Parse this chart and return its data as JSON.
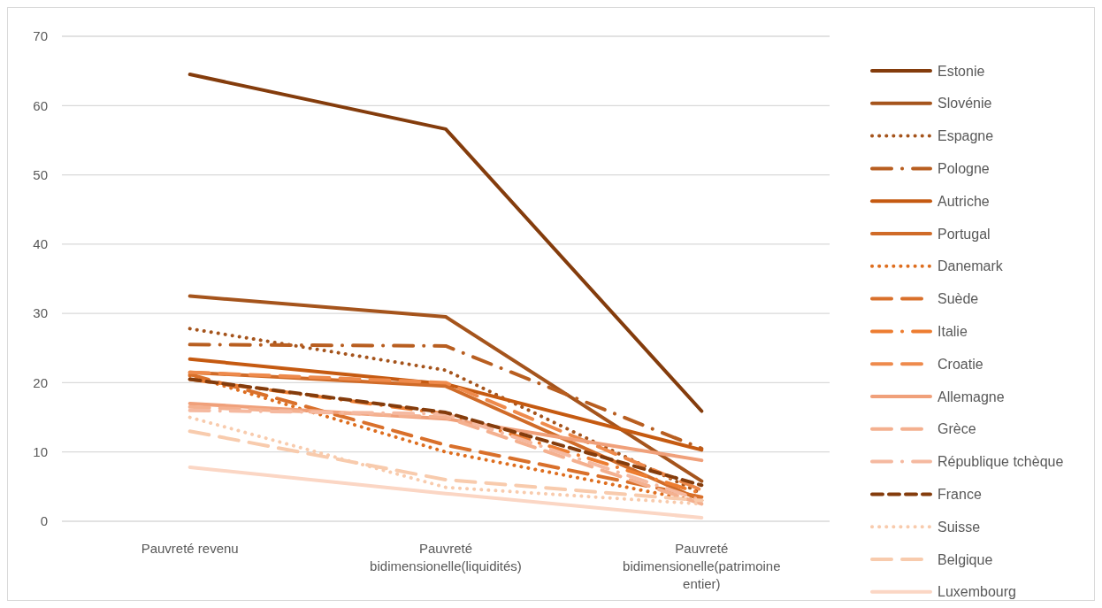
{
  "chart_data": {
    "type": "line",
    "categories": [
      "Pauvreté revenu",
      "Pauvreté bidimensionelle(liquidités)",
      "Pauvreté bidimensionelle(patrimoine entier)"
    ],
    "ylim": [
      0,
      70
    ],
    "yticks": [
      0,
      10,
      20,
      30,
      40,
      50,
      60,
      70
    ],
    "grid": "y",
    "legend": "right",
    "marker": "none",
    "series": [
      {
        "name": "Estonie",
        "color": "#843c0c",
        "line_style": "solid",
        "values": [
          64.5,
          56.6,
          15.9
        ]
      },
      {
        "name": "Slovénie",
        "color": "#a5541c",
        "line_style": "solid",
        "values": [
          32.5,
          29.5,
          5.8
        ]
      },
      {
        "name": "Espagne",
        "color": "#a5541c",
        "line_style": "dotted",
        "values": [
          27.8,
          21.8,
          4
        ]
      },
      {
        "name": "Pologne",
        "color": "#b85e20",
        "line_style": "dashdot",
        "values": [
          25.5,
          25.3,
          10.5
        ]
      },
      {
        "name": "Autriche",
        "color": "#c55a11",
        "line_style": "solid",
        "values": [
          23.4,
          19.8,
          10.3
        ]
      },
      {
        "name": "Portugal",
        "color": "#d06b28",
        "line_style": "solid",
        "values": [
          21.5,
          19.5,
          3
        ]
      },
      {
        "name": "Danemark",
        "color": "#de6e1f",
        "line_style": "dotted",
        "values": [
          21,
          10,
          2.8
        ]
      },
      {
        "name": "Suède",
        "color": "#d9702b",
        "line_style": "longdash",
        "values": [
          21.2,
          11,
          3.5
        ]
      },
      {
        "name": "Italie",
        "color": "#ed7d31",
        "line_style": "dashdot",
        "values": [
          20.5,
          15.5,
          4
        ]
      },
      {
        "name": "Croatie",
        "color": "#ee8a4c",
        "line_style": "longdash",
        "values": [
          21.5,
          20,
          4.5
        ]
      },
      {
        "name": "Allemagne",
        "color": "#f0a07a",
        "line_style": "solid",
        "values": [
          17,
          14.8,
          8.8
        ]
      },
      {
        "name": "Grèce",
        "color": "#f4b08f",
        "line_style": "longdash",
        "values": [
          16.5,
          15,
          2.5
        ]
      },
      {
        "name": "République tchèque",
        "color": "#f5b9a0",
        "line_style": "dashdot",
        "values": [
          16,
          15.5,
          3
        ]
      },
      {
        "name": "France",
        "color": "#843c0c",
        "line_style": "dashed",
        "values": [
          20.5,
          15.7,
          5.2
        ]
      },
      {
        "name": "Suisse",
        "color": "#f8cbad",
        "line_style": "dotted",
        "values": [
          15,
          4.9,
          2.5
        ]
      },
      {
        "name": "Belgique",
        "color": "#f8cbad",
        "line_style": "longdash",
        "values": [
          13,
          6,
          3
        ]
      },
      {
        "name": "Luxembourg",
        "color": "#fbd6c4",
        "line_style": "solid",
        "values": [
          7.8,
          4,
          0.5
        ]
      }
    ]
  }
}
